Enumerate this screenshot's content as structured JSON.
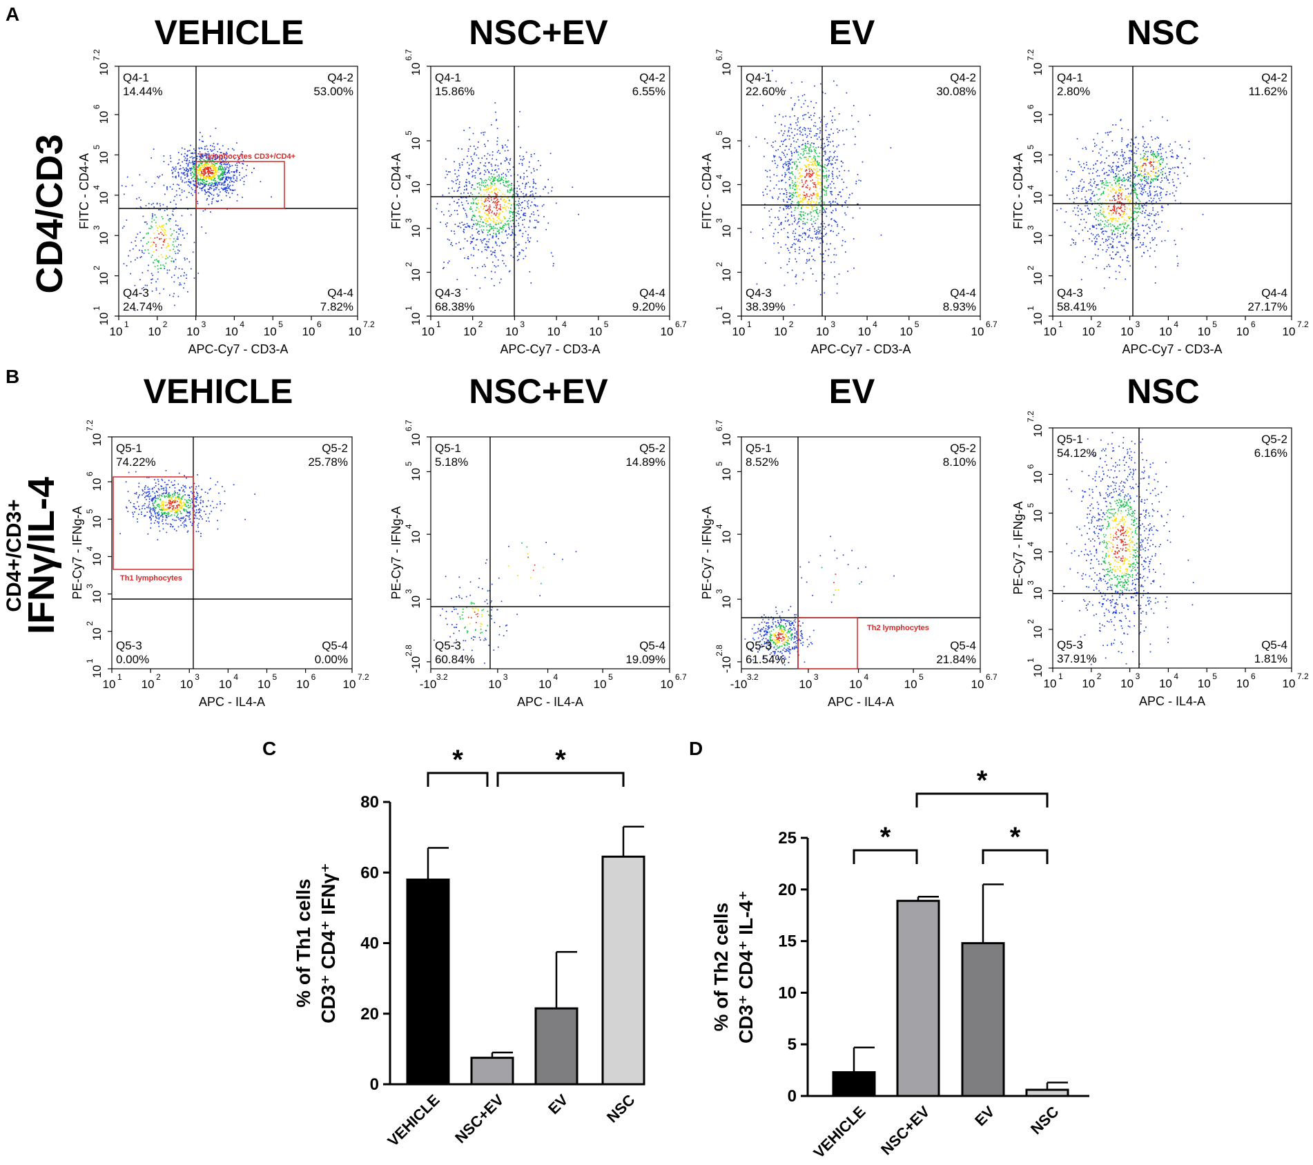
{
  "panel_letters": {
    "a": "A",
    "b": "B",
    "c": "C",
    "d": "D"
  },
  "row_labels": {
    "row_a": "CD4/CD3",
    "row_b_line1": "CD4+/CD3+",
    "row_b_line2": "IFNγ/IL-4"
  },
  "colors": {
    "gate": "#d62728",
    "density_low": "#1f3fd6",
    "density_mid": "#19c24a",
    "density_high": "#ffdd00",
    "density_peak": "#e0301e"
  },
  "chart_data": [
    {
      "type": "scatter",
      "panel": "A",
      "title": "VEHICLE",
      "xlabel": "APC-Cy7 - CD3-A",
      "ylabel": "FITC - CD4-A",
      "x_ticks": [
        "10",
        "10",
        "10",
        "10",
        "10",
        "10",
        "10"
      ],
      "x_tick_exps": [
        "1",
        "2",
        "3",
        "4",
        "5",
        "6",
        "7.2"
      ],
      "y_ticks": [
        "10",
        "10",
        "10",
        "10",
        "10",
        "10",
        "10"
      ],
      "y_tick_exps": [
        "1",
        "2",
        "3",
        "4",
        "5",
        "6",
        "7.2"
      ],
      "xlim": [
        1,
        7.2
      ],
      "ylim": [
        1,
        7.2
      ],
      "quadrants": [
        {
          "name": "Q4-1",
          "value": "14.44%"
        },
        {
          "name": "Q4-2",
          "value": "53.00%"
        },
        {
          "name": "Q4-3",
          "value": "24.74%"
        },
        {
          "name": "Q4-4",
          "value": "7.82%"
        }
      ],
      "gate_label": "T lymphocytes CD3+/CD4+"
    },
    {
      "type": "scatter",
      "panel": "A",
      "title": "NSC+EV",
      "xlabel": "APC-Cy7 - CD3-A",
      "ylabel": "FITC - CD4-A",
      "x_ticks": [
        "10",
        "10",
        "10",
        "10",
        "10",
        "10"
      ],
      "x_tick_exps": [
        "1",
        "2",
        "3",
        "4",
        "5",
        "6.7"
      ],
      "y_ticks": [
        "10",
        "10",
        "10",
        "10",
        "10",
        "10"
      ],
      "y_tick_exps": [
        "1",
        "2",
        "3",
        "4",
        "5",
        "6.7"
      ],
      "xlim": [
        1,
        6.7
      ],
      "ylim": [
        1,
        6.7
      ],
      "quadrants": [
        {
          "name": "Q4-1",
          "value": "15.86%"
        },
        {
          "name": "Q4-2",
          "value": "6.55%"
        },
        {
          "name": "Q4-3",
          "value": "68.38%"
        },
        {
          "name": "Q4-4",
          "value": "9.20%"
        }
      ],
      "gate_label": ""
    },
    {
      "type": "scatter",
      "panel": "A",
      "title": "EV",
      "xlabel": "APC-Cy7 - CD3-A",
      "ylabel": "FITC - CD4-A",
      "x_ticks": [
        "10",
        "10",
        "10",
        "10",
        "10",
        "10"
      ],
      "x_tick_exps": [
        "1",
        "2",
        "3",
        "4",
        "5",
        "6.7"
      ],
      "y_ticks": [
        "10",
        "10",
        "10",
        "10",
        "10",
        "10"
      ],
      "y_tick_exps": [
        "1",
        "2",
        "3",
        "4",
        "5",
        "6.7"
      ],
      "xlim": [
        1,
        6.7
      ],
      "ylim": [
        1,
        6.7
      ],
      "quadrants": [
        {
          "name": "Q4-1",
          "value": "22.60%"
        },
        {
          "name": "Q4-2",
          "value": "30.08%"
        },
        {
          "name": "Q4-3",
          "value": "38.39%"
        },
        {
          "name": "Q4-4",
          "value": "8.93%"
        }
      ],
      "gate_label": ""
    },
    {
      "type": "scatter",
      "panel": "A",
      "title": "NSC",
      "xlabel": "APC-Cy7 - CD3-A",
      "ylabel": "FITC - CD4-A",
      "x_ticks": [
        "10",
        "10",
        "10",
        "10",
        "10",
        "10",
        "10"
      ],
      "x_tick_exps": [
        "1",
        "2",
        "3",
        "4",
        "5",
        "6",
        "7.2"
      ],
      "y_ticks": [
        "10",
        "10",
        "10",
        "10",
        "10",
        "10",
        "10"
      ],
      "y_tick_exps": [
        "1",
        "2",
        "3",
        "4",
        "5",
        "6",
        "7.2"
      ],
      "xlim": [
        1,
        7.2
      ],
      "ylim": [
        1,
        7.2
      ],
      "quadrants": [
        {
          "name": "Q4-1",
          "value": "2.80%"
        },
        {
          "name": "Q4-2",
          "value": "11.62%"
        },
        {
          "name": "Q4-3",
          "value": "58.41%"
        },
        {
          "name": "Q4-4",
          "value": "27.17%"
        }
      ],
      "gate_label": ""
    },
    {
      "type": "scatter",
      "panel": "B",
      "title": "VEHICLE",
      "xlabel": "APC - IL4-A",
      "ylabel": "PE-Cy7 - IFNg-A",
      "x_ticks": [
        "10",
        "10",
        "10",
        "10",
        "10",
        "10",
        "10"
      ],
      "x_tick_exps": [
        "1",
        "2",
        "3",
        "4",
        "5",
        "6",
        "7.2"
      ],
      "y_ticks": [
        "10",
        "10",
        "10",
        "10",
        "10",
        "10",
        "10"
      ],
      "y_tick_exps": [
        "1",
        "2",
        "3",
        "4",
        "5",
        "6",
        "7.2"
      ],
      "xlim": [
        1,
        7.2
      ],
      "ylim": [
        1,
        7.2
      ],
      "quadrants": [
        {
          "name": "Q5-1",
          "value": "74.22%"
        },
        {
          "name": "Q5-2",
          "value": "25.78%"
        },
        {
          "name": "Q5-3",
          "value": "0.00%"
        },
        {
          "name": "Q5-4",
          "value": "0.00%"
        }
      ],
      "gate_label": "Th1 lymphocytes"
    },
    {
      "type": "scatter",
      "panel": "B",
      "title": "NSC+EV",
      "xlabel": "APC - IL4-A",
      "ylabel": "PE-Cy7 - IFNg-A",
      "x_ticks": [
        "-10",
        "10",
        "10",
        "10"
      ],
      "x_tick_exps": [
        "3.2",
        "3",
        "4",
        "5",
        "6.7"
      ],
      "x_tick_last": "10",
      "y_ticks": [
        "-10",
        "10",
        "10",
        "10",
        "10"
      ],
      "y_tick_exps": [
        "2.8",
        "3",
        "4",
        "5",
        "6.7"
      ],
      "xlim": [
        -3.2,
        6.7
      ],
      "ylim": [
        -2.8,
        6.7
      ],
      "quadrants": [
        {
          "name": "Q5-1",
          "value": "5.18%"
        },
        {
          "name": "Q5-2",
          "value": "14.89%"
        },
        {
          "name": "Q5-3",
          "value": "60.84%"
        },
        {
          "name": "Q5-4",
          "value": "19.09%"
        }
      ],
      "gate_label": ""
    },
    {
      "type": "scatter",
      "panel": "B",
      "title": "EV",
      "xlabel": "APC - IL4-A",
      "ylabel": "PE-Cy7 - IFNg-A",
      "x_ticks": [
        "-10",
        "10",
        "10",
        "10"
      ],
      "x_tick_exps": [
        "3.2",
        "3",
        "4",
        "5",
        "6.7"
      ],
      "x_tick_last": "10",
      "y_ticks": [
        "-10",
        "10",
        "10",
        "10",
        "10"
      ],
      "y_tick_exps": [
        "2.8",
        "3",
        "4",
        "5",
        "6.7"
      ],
      "xlim": [
        -3.2,
        6.7
      ],
      "ylim": [
        -2.8,
        6.7
      ],
      "quadrants": [
        {
          "name": "Q5-1",
          "value": "8.52%"
        },
        {
          "name": "Q5-2",
          "value": "8.10%"
        },
        {
          "name": "Q5-3",
          "value": "61.54%"
        },
        {
          "name": "Q5-4",
          "value": "21.84%"
        }
      ],
      "gate_label": "Th2 lymphocytes"
    },
    {
      "type": "scatter",
      "panel": "B",
      "title": "NSC",
      "xlabel": "APC - IL4-A",
      "ylabel": "PE-Cy7 - IFNg-A",
      "x_ticks": [
        "10",
        "10",
        "10",
        "10",
        "10",
        "10",
        "10"
      ],
      "x_tick_exps": [
        "1",
        "2",
        "3",
        "4",
        "5",
        "6",
        "7.2"
      ],
      "y_ticks": [
        "10",
        "10",
        "10",
        "10",
        "10",
        "10",
        "10"
      ],
      "y_tick_exps": [
        "1",
        "2",
        "3",
        "4",
        "5",
        "6",
        "7.2"
      ],
      "xlim": [
        1,
        7.2
      ],
      "ylim": [
        1,
        7.2
      ],
      "quadrants": [
        {
          "name": "Q5-1",
          "value": "54.12%"
        },
        {
          "name": "Q5-2",
          "value": "6.16%"
        },
        {
          "name": "Q5-3",
          "value": "37.91%"
        },
        {
          "name": "Q5-4",
          "value": "1.81%"
        }
      ],
      "gate_label": ""
    },
    {
      "type": "bar",
      "panel": "C",
      "categories": [
        "VEHICLE",
        "NSC+EV",
        "EV",
        "NSC"
      ],
      "values": [
        58,
        7.5,
        21.5,
        64.5
      ],
      "errors": [
        9,
        1.5,
        16,
        8.5
      ],
      "bar_colors": [
        "#000000",
        "#a3a3a7",
        "#7e7e80",
        "#d3d3d3"
      ],
      "ylabel_line1": "% of Th1 cells",
      "ylabel_line2": "CD3⁺ CD4⁺ IFNγ⁺",
      "ylim": [
        0,
        80
      ],
      "yticks": [
        "0",
        "20",
        "40",
        "60",
        "80"
      ],
      "significance": [
        {
          "from": "VEHICLE",
          "to": "NSC+EV",
          "label": "*"
        },
        {
          "from": "NSC+EV",
          "to": "NSC",
          "label": "*"
        }
      ]
    },
    {
      "type": "bar",
      "panel": "D",
      "categories": [
        "VEHICLE",
        "NSC+EV",
        "EV",
        "NSC"
      ],
      "values": [
        2.3,
        18.9,
        14.8,
        0.6
      ],
      "errors": [
        2.4,
        0.4,
        5.7,
        0.7
      ],
      "bar_colors": [
        "#000000",
        "#a3a3a7",
        "#7e7e80",
        "#d3d3d3"
      ],
      "ylabel_line1": "% of Th2 cells",
      "ylabel_line2": "CD3⁺ CD4⁺ IL-4⁺",
      "ylim": [
        0,
        25
      ],
      "yticks": [
        "0",
        "5",
        "10",
        "15",
        "20",
        "25"
      ],
      "significance": [
        {
          "from": "VEHICLE",
          "to": "NSC+EV",
          "label": "*"
        },
        {
          "from": "NSC+EV",
          "to": "NSC",
          "label": "*"
        },
        {
          "from": "EV",
          "to": "NSC",
          "label": "*"
        }
      ]
    }
  ]
}
